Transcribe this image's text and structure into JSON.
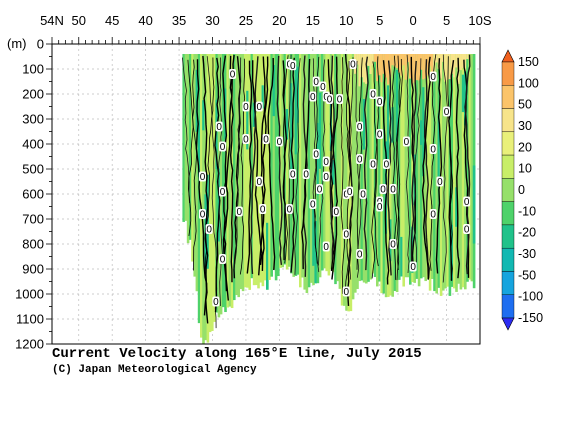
{
  "chart_data": {
    "type": "heatmap",
    "title": "Current Velocity along 165°E line, July 2015",
    "credit": "(C) Japan Meteorological Agency",
    "x_tick_labels": [
      "54N",
      "50",
      "45",
      "40",
      "35",
      "30",
      "25",
      "20",
      "15",
      "10",
      "5",
      "0",
      "5",
      "10S"
    ],
    "x_tick_lat": [
      54,
      50,
      45,
      40,
      35,
      30,
      25,
      20,
      15,
      10,
      5,
      0,
      -5,
      -10
    ],
    "xlim": [
      54,
      -10
    ],
    "ylabel": "(m)",
    "y_ticks": [
      0,
      100,
      200,
      300,
      400,
      500,
      600,
      700,
      800,
      900,
      1000,
      1100,
      1200
    ],
    "ylim": [
      0,
      1200
    ],
    "grid": true,
    "colorbar": {
      "labels": [
        "150",
        "100",
        "50",
        "30",
        "20",
        "10",
        "0",
        "-10",
        "-20",
        "-30",
        "-50",
        "-100",
        "-150"
      ],
      "colors": [
        "#f0601e",
        "#f89a46",
        "#fbc46a",
        "#f7e48a",
        "#e9f07a",
        "#c8ee68",
        "#96e06a",
        "#4ed26a",
        "#20c28a",
        "#12b8b2",
        "#16a4de",
        "#1e6ef0",
        "#2c2cf2"
      ]
    },
    "data_coverage": {
      "lat_range": [
        34.5,
        -9
      ],
      "bottom_depth_by_lat": [
        [
          34.5,
          700
        ],
        [
          33,
          870
        ],
        [
          32,
          1180
        ],
        [
          31,
          1180
        ],
        [
          30,
          1110
        ],
        [
          28,
          1060
        ],
        [
          26,
          980
        ],
        [
          24,
          950
        ],
        [
          22,
          960
        ],
        [
          20,
          900
        ],
        [
          18,
          930
        ],
        [
          16,
          970
        ],
        [
          14,
          920
        ],
        [
          12,
          930
        ],
        [
          10,
          1080
        ],
        [
          8,
          950
        ],
        [
          6,
          940
        ],
        [
          4,
          1000
        ],
        [
          2,
          960
        ],
        [
          0,
          930
        ],
        [
          -2,
          960
        ],
        [
          -4,
          980
        ],
        [
          -6,
          980
        ],
        [
          -8,
          960
        ],
        [
          -9,
          950
        ]
      ]
    },
    "contour_labels": [
      {
        "text": "0",
        "lat": 27,
        "depth": 120
      },
      {
        "text": "0",
        "lat": 18.5,
        "depth": 80
      },
      {
        "text": "0",
        "lat": 18,
        "depth": 85
      },
      {
        "text": "0",
        "lat": 14.5,
        "depth": 150
      },
      {
        "text": "0",
        "lat": 13.5,
        "depth": 170
      },
      {
        "text": "0",
        "lat": 13,
        "depth": 210
      },
      {
        "text": "0",
        "lat": 9,
        "depth": 80
      },
      {
        "text": "0",
        "lat": -3,
        "depth": 130
      },
      {
        "text": "0",
        "lat": 15,
        "depth": 210
      },
      {
        "text": "0",
        "lat": 12.5,
        "depth": 220
      },
      {
        "text": "0",
        "lat": 11,
        "depth": 220
      },
      {
        "text": "0",
        "lat": 6,
        "depth": 200
      },
      {
        "text": "0",
        "lat": 5,
        "depth": 230
      },
      {
        "text": "0",
        "lat": 25,
        "depth": 250
      },
      {
        "text": "0",
        "lat": 23,
        "depth": 250
      },
      {
        "text": "0",
        "lat": 29,
        "depth": 330
      },
      {
        "text": "0",
        "lat": 25,
        "depth": 380
      },
      {
        "text": "0",
        "lat": 22,
        "depth": 380
      },
      {
        "text": "0",
        "lat": 20,
        "depth": 390
      },
      {
        "text": "0",
        "lat": 8,
        "depth": 330
      },
      {
        "text": "0",
        "lat": 5,
        "depth": 360
      },
      {
        "text": "0",
        "lat": -5,
        "depth": 270
      },
      {
        "text": "0",
        "lat": 1,
        "depth": 390
      },
      {
        "text": "0",
        "lat": -3,
        "depth": 420
      },
      {
        "text": "0",
        "lat": 28.5,
        "depth": 410
      },
      {
        "text": "0",
        "lat": 14.5,
        "depth": 440
      },
      {
        "text": "0",
        "lat": 13,
        "depth": 470
      },
      {
        "text": "0",
        "lat": 8,
        "depth": 460
      },
      {
        "text": "0",
        "lat": 6,
        "depth": 480
      },
      {
        "text": "0",
        "lat": 4,
        "depth": 480
      },
      {
        "text": "0",
        "lat": 31.5,
        "depth": 530
      },
      {
        "text": "0",
        "lat": 23,
        "depth": 550
      },
      {
        "text": "0",
        "lat": 18,
        "depth": 520
      },
      {
        "text": "0",
        "lat": 16,
        "depth": 520
      },
      {
        "text": "0",
        "lat": 13,
        "depth": 530
      },
      {
        "text": "0",
        "lat": -4,
        "depth": 550
      },
      {
        "text": "0",
        "lat": 28.5,
        "depth": 590
      },
      {
        "text": "0",
        "lat": 14,
        "depth": 580
      },
      {
        "text": "0",
        "lat": 10,
        "depth": 600
      },
      {
        "text": "0",
        "lat": 9.5,
        "depth": 590
      },
      {
        "text": "0",
        "lat": 7.5,
        "depth": 600
      },
      {
        "text": "0",
        "lat": 4.5,
        "depth": 580
      },
      {
        "text": "0",
        "lat": 3,
        "depth": 580
      },
      {
        "text": "0",
        "lat": 5,
        "depth": 630
      },
      {
        "text": "0",
        "lat": -8,
        "depth": 630
      },
      {
        "text": "0",
        "lat": 31.5,
        "depth": 680
      },
      {
        "text": "0",
        "lat": 26,
        "depth": 670
      },
      {
        "text": "0",
        "lat": 22.5,
        "depth": 660
      },
      {
        "text": "0",
        "lat": 18.5,
        "depth": 660
      },
      {
        "text": "0",
        "lat": 15,
        "depth": 640
      },
      {
        "text": "0",
        "lat": 11.5,
        "depth": 670
      },
      {
        "text": "0",
        "lat": 5,
        "depth": 650
      },
      {
        "text": "0",
        "lat": -3,
        "depth": 680
      },
      {
        "text": "0",
        "lat": 30.5,
        "depth": 740
      },
      {
        "text": "0",
        "lat": 10,
        "depth": 760
      },
      {
        "text": "0",
        "lat": 3,
        "depth": 800
      },
      {
        "text": "0",
        "lat": -8,
        "depth": 740
      },
      {
        "text": "0",
        "lat": 13,
        "depth": 810
      },
      {
        "text": "0",
        "lat": 28.5,
        "depth": 860
      },
      {
        "text": "0",
        "lat": 8,
        "depth": 840
      },
      {
        "text": "0",
        "lat": 0,
        "depth": 890
      },
      {
        "text": "0",
        "lat": 10,
        "depth": 990
      },
      {
        "text": "0",
        "lat": 29.5,
        "depth": 1030
      }
    ]
  }
}
